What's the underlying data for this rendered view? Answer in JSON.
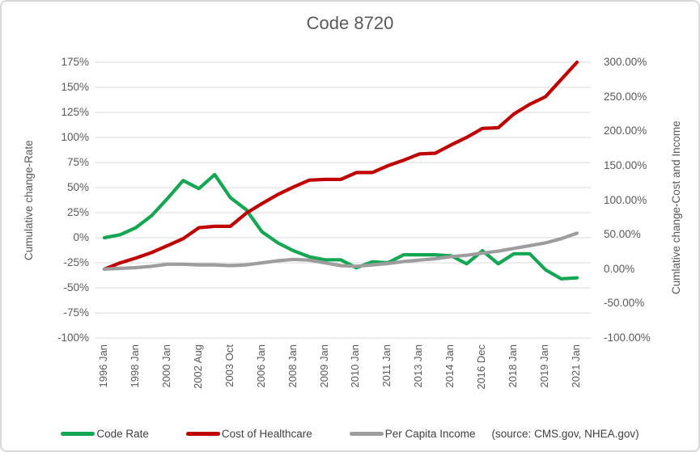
{
  "title": "Code 8720",
  "left_axis": {
    "title": "Cumulative change-Rate",
    "ticks": [
      "175%",
      "150%",
      "125%",
      "100%",
      "75%",
      "50%",
      "25%",
      "0%",
      "-25%",
      "-50%",
      "-75%",
      "-100%"
    ],
    "min": -100,
    "max": 175
  },
  "right_axis": {
    "title": "Cumlative change-Cost and Income",
    "ticks": [
      "300.00%",
      "250.00%",
      "200.00%",
      "150.00%",
      "100.00%",
      "50.00%",
      "0.00%",
      "-50.00%",
      "-100.00%"
    ],
    "min": -100,
    "max": 300
  },
  "legend": {
    "items": [
      {
        "label": "Code Rate",
        "color": "#13A653"
      },
      {
        "label": "Cost of Healthcare",
        "color": "#C00000"
      },
      {
        "label": "Per Capita Income",
        "color": "#9D9D9D"
      }
    ],
    "source_note": "(source: CMS.gov, NHEA.gov)"
  },
  "colors": {
    "grid": "#D9D9D9",
    "text": "#595959",
    "legend_text": "#404040"
  },
  "chart_data": {
    "type": "line",
    "title": "Code 8720",
    "xlabel": "",
    "ylabel_left": "Cumulative change-Rate",
    "ylabel_right": "Cumlative change-Cost and Income",
    "grid": true,
    "legend_position": "bottom",
    "left_axis_range": [
      -100,
      175
    ],
    "right_axis_range": [
      -100,
      300
    ],
    "x_tick_labels": [
      "1996 Jan",
      "1998 Jan",
      "2000 Jan",
      "2002 Aug",
      "2003 Oct",
      "2006 Jan",
      "2008 Jan",
      "2009 Jan",
      "2010 Jan",
      "2011 Jan",
      "2013 Jan",
      "2014 Jan",
      "2016 Dec",
      "2018 Jan",
      "2019 Jan",
      "2021 Jan"
    ],
    "x_tick_indices": [
      0,
      2,
      4,
      6,
      8,
      10,
      12,
      14,
      16,
      18,
      20,
      22,
      24,
      26,
      28,
      30
    ],
    "series": [
      {
        "name": "Code Rate",
        "axis": "left",
        "color": "#13A653",
        "values_unit": "percent",
        "values": [
          0,
          3,
          10,
          22,
          39,
          57,
          49,
          63,
          40,
          28,
          6,
          -5,
          -13,
          -19,
          -22,
          -22,
          -30,
          -24,
          -25,
          -17,
          -17,
          -17,
          -18,
          -26,
          -13,
          -26,
          -16,
          -16,
          -32,
          -41,
          -40
        ]
      },
      {
        "name": "Cost of Healthcare",
        "axis": "right",
        "color": "#C00000",
        "values_unit": "percent",
        "values": [
          0,
          9,
          16,
          24,
          34,
          44,
          60,
          62,
          62,
          81,
          95,
          108,
          119,
          129,
          130,
          130,
          140,
          140,
          150,
          158,
          167,
          168,
          180,
          191,
          204,
          205,
          225,
          239,
          250,
          275,
          300
        ]
      },
      {
        "name": "Per Capita Income",
        "axis": "right",
        "color": "#9D9D9D",
        "values_unit": "percent",
        "values": [
          0,
          1,
          2,
          4,
          7,
          7,
          6,
          6,
          5,
          6,
          9,
          12,
          14,
          13,
          9,
          5,
          4,
          6,
          8,
          11,
          13,
          15,
          18,
          20,
          23,
          26,
          30,
          34,
          38,
          44,
          52
        ]
      }
    ]
  }
}
